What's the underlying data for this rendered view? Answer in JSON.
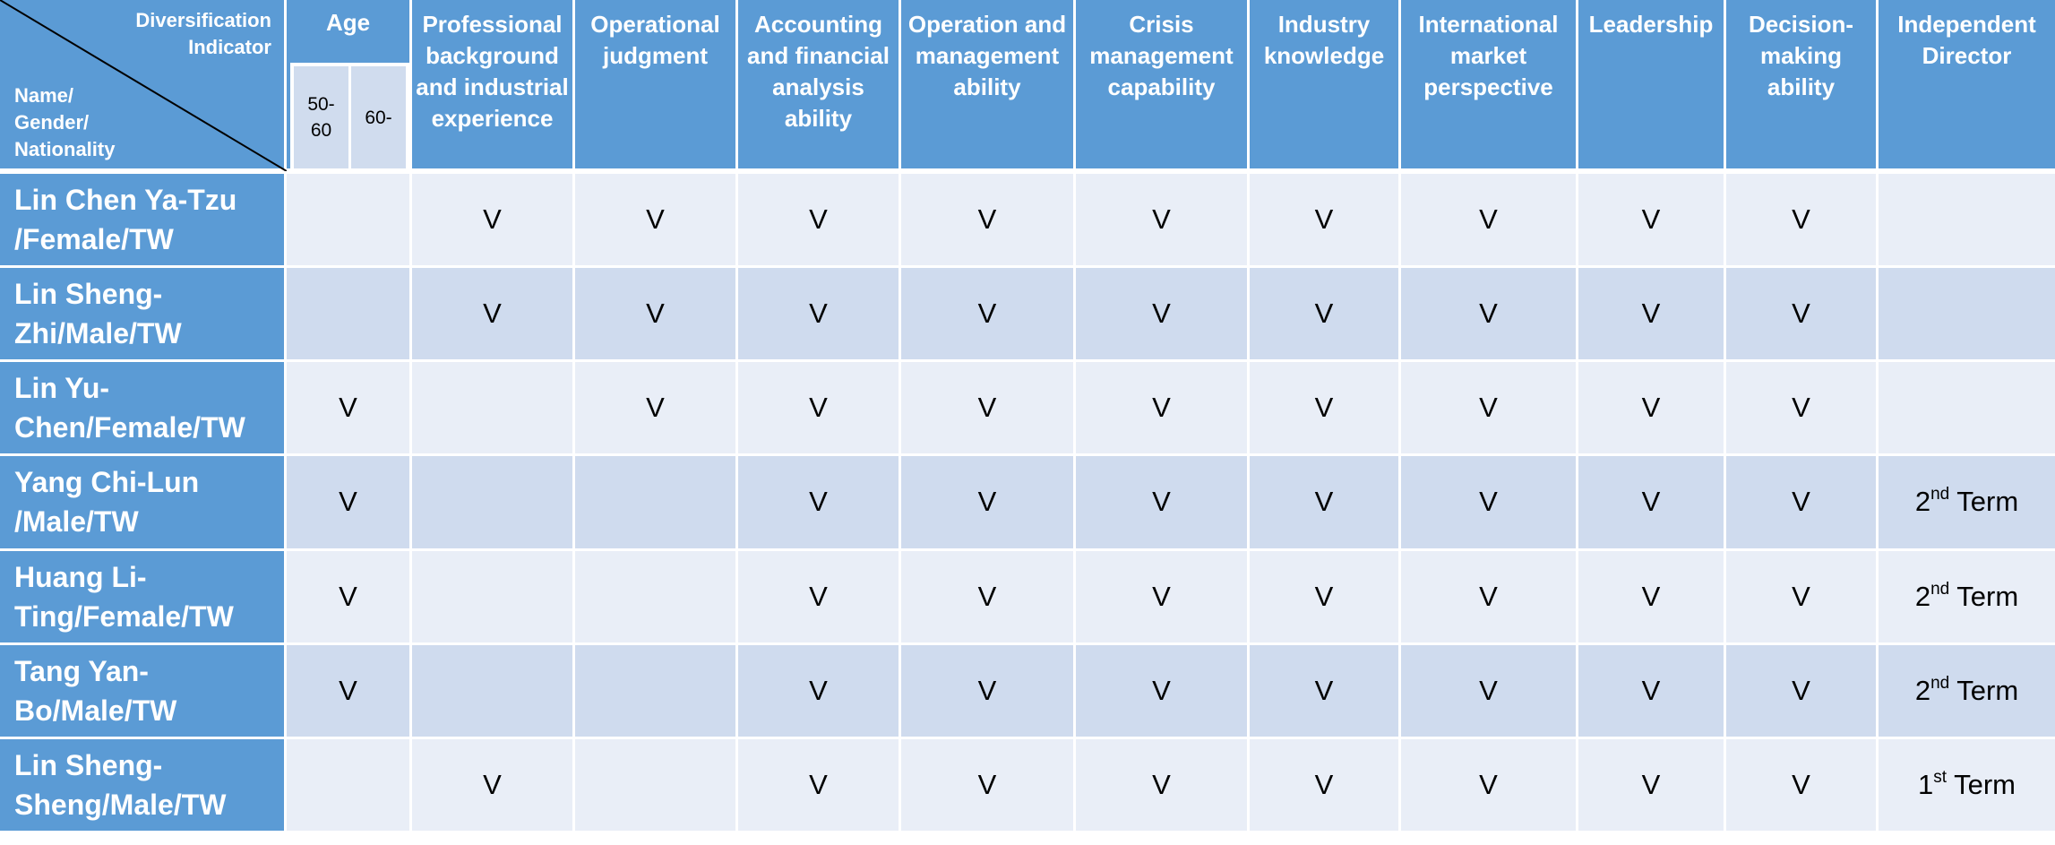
{
  "header": {
    "corner_top": "Diversification\nIndicator",
    "corner_bottom": "Name/\nGender/\nNationality",
    "age": {
      "label": "Age",
      "sub": [
        "50-\n60",
        "60-"
      ]
    },
    "columns": [
      "Professional background and industrial experience",
      "Operational judgment",
      "Accounting and financial analysis ability",
      "Operation and management ability",
      "Crisis management capability",
      "Industry knowledge",
      "International market perspective",
      "Leadership",
      "Decision-making ability",
      "Independent Director"
    ]
  },
  "rows": [
    {
      "name": "Lin Chen Ya-Tzu /Female/TW",
      "age": "",
      "marks": [
        "V",
        "V",
        "V",
        "V",
        "V",
        "V",
        "V",
        "V",
        "V"
      ],
      "term": {
        "ordinal": "",
        "suffix": "",
        "label": ""
      }
    },
    {
      "name": "Lin Sheng-Zhi/Male/TW",
      "age": "",
      "marks": [
        "V",
        "V",
        "V",
        "V",
        "V",
        "V",
        "V",
        "V",
        "V"
      ],
      "term": {
        "ordinal": "",
        "suffix": "",
        "label": ""
      }
    },
    {
      "name": "Lin Yu-Chen/Female/TW",
      "age": "V",
      "marks": [
        "",
        "V",
        "V",
        "V",
        "V",
        "V",
        "V",
        "V",
        "V"
      ],
      "term": {
        "ordinal": "",
        "suffix": "",
        "label": ""
      }
    },
    {
      "name": "Yang Chi-Lun /Male/TW",
      "age": "V",
      "marks": [
        "",
        "",
        "V",
        "V",
        "V",
        "V",
        "V",
        "V",
        "V"
      ],
      "term": {
        "ordinal": "2",
        "suffix": "nd",
        "label": " Term"
      }
    },
    {
      "name": "Huang Li-Ting/Female/TW",
      "age": "V",
      "marks": [
        "",
        "",
        "V",
        "V",
        "V",
        "V",
        "V",
        "V",
        "V"
      ],
      "term": {
        "ordinal": "2",
        "suffix": "nd",
        "label": " Term"
      }
    },
    {
      "name": "Tang Yan-Bo/Male/TW",
      "age": "V",
      "marks": [
        "",
        "",
        "V",
        "V",
        "V",
        "V",
        "V",
        "V",
        "V"
      ],
      "term": {
        "ordinal": "2",
        "suffix": "nd",
        "label": " Term"
      }
    },
    {
      "name": "Lin Sheng-Sheng/Male/TW",
      "age": "",
      "marks": [
        "V",
        "",
        "V",
        "V",
        "V",
        "V",
        "V",
        "V",
        "V"
      ],
      "term": {
        "ordinal": "1",
        "suffix": "st",
        "label": " Term"
      }
    }
  ]
}
